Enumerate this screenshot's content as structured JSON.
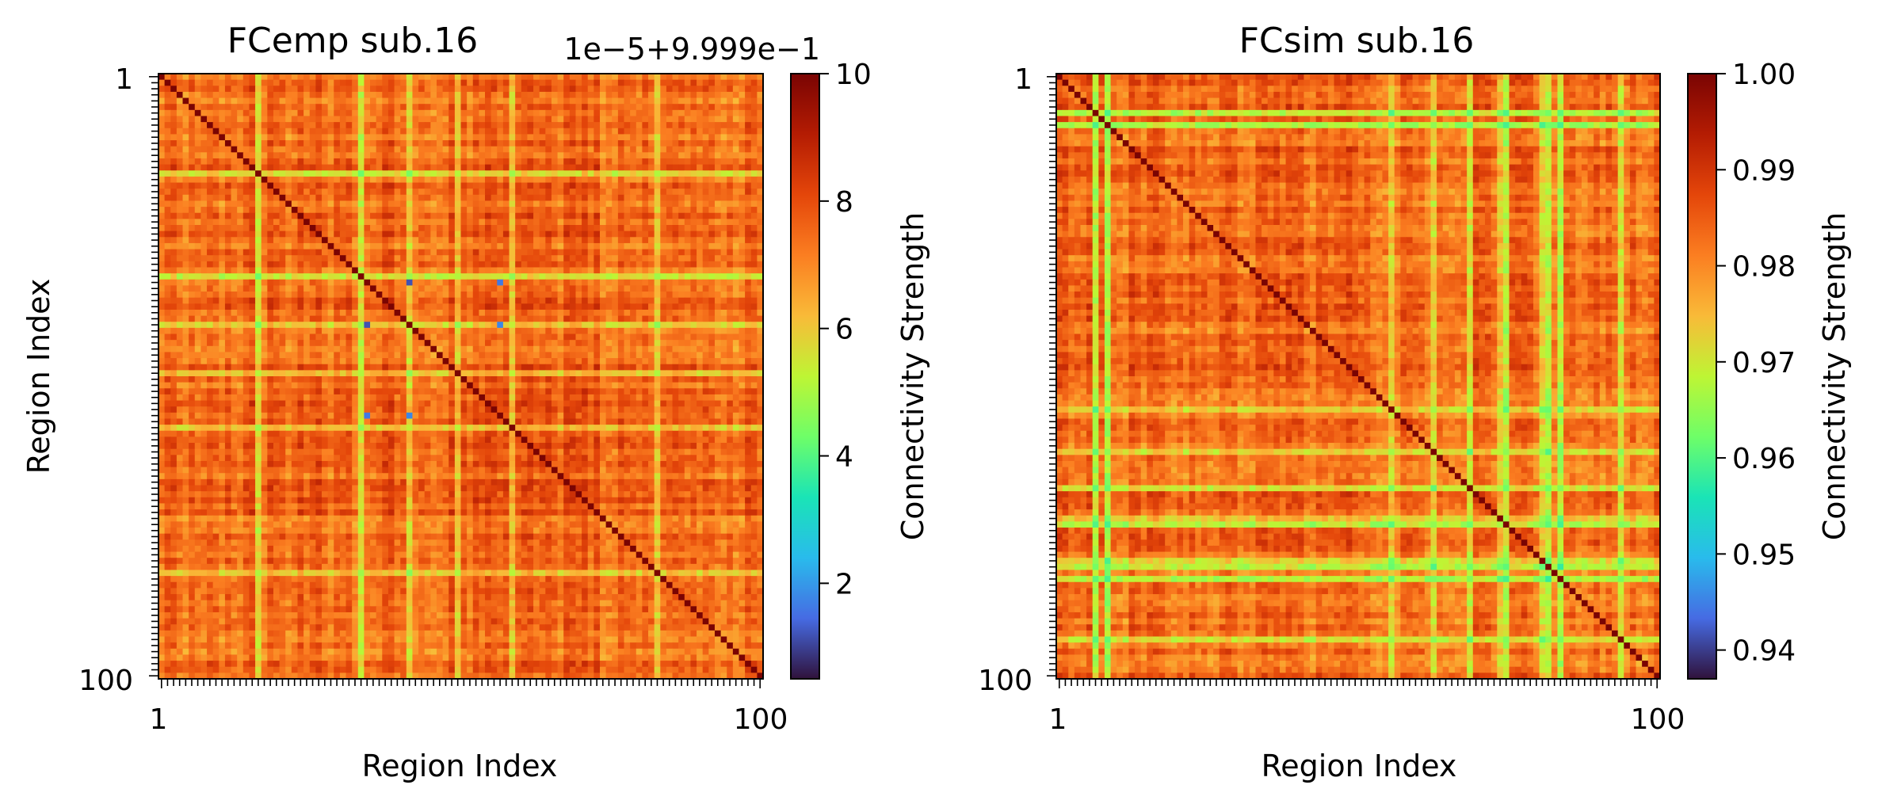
{
  "chart_data": [
    {
      "type": "heatmap",
      "title": "FCemp sub.16",
      "xlabel": "Region Index",
      "ylabel": "Region Index",
      "n_regions": 100,
      "x_tick_labels": [
        "1",
        "100"
      ],
      "y_tick_labels": [
        "1",
        "100"
      ],
      "diagonal_value": 10,
      "off_diagonal_range": [
        0.5,
        9.8
      ],
      "blue_hub_regions": [
        34,
        41,
        56
      ],
      "weak_regions": [
        16,
        33,
        41,
        49,
        58,
        82
      ],
      "colorbar": {
        "label": "Connectivity Strength",
        "offset_text": "1e−5+9.999e−1",
        "range": [
          0.5,
          10
        ],
        "ticks": [
          2,
          4,
          6,
          8,
          10
        ],
        "tick_labels": [
          "2",
          "4",
          "6",
          "8",
          "10"
        ],
        "colormap": "turbo"
      }
    },
    {
      "type": "heatmap",
      "title": "FCsim sub.16",
      "xlabel": "Region Index",
      "ylabel": "",
      "n_regions": 100,
      "x_tick_labels": [
        "1",
        "100"
      ],
      "y_tick_labels": [
        "1",
        "100"
      ],
      "diagonal_value": 1.0,
      "off_diagonal_range": [
        0.937,
        0.995
      ],
      "weak_regions": [
        6,
        8,
        55,
        62,
        68,
        73,
        74,
        80,
        81,
        83,
        93
      ],
      "colorbar": {
        "label": "Connectivity Strength",
        "offset_text": "",
        "range": [
          0.937,
          1.0
        ],
        "ticks": [
          0.94,
          0.95,
          0.96,
          0.97,
          0.98,
          0.99,
          1.0
        ],
        "tick_labels": [
          "0.94",
          "0.95",
          "0.96",
          "0.97",
          "0.98",
          "0.99",
          "1.00"
        ],
        "colormap": "turbo"
      }
    }
  ]
}
